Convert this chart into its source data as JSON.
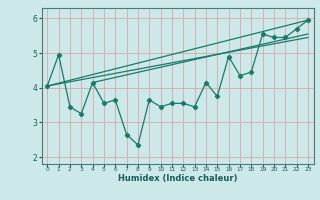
{
  "title": "",
  "xlabel": "Humidex (Indice chaleur)",
  "ylabel": "",
  "bg_color": "#cce8e8",
  "grid_color": "#b8d4d4",
  "line_color": "#1a7a6a",
  "xlim": [
    -0.5,
    23.5
  ],
  "ylim": [
    1.8,
    6.3
  ],
  "xticks": [
    0,
    1,
    2,
    3,
    4,
    5,
    6,
    7,
    8,
    9,
    10,
    11,
    12,
    13,
    14,
    15,
    16,
    17,
    18,
    19,
    20,
    21,
    22,
    23
  ],
  "yticks": [
    2,
    3,
    4,
    5,
    6
  ],
  "zigzag_x": [
    0,
    1,
    2,
    3,
    4,
    5,
    6,
    7,
    8,
    9,
    10,
    11,
    12,
    13,
    14,
    15,
    16,
    17,
    18,
    19,
    20,
    21,
    22,
    23
  ],
  "zigzag_y": [
    4.05,
    4.95,
    3.45,
    3.25,
    4.15,
    3.55,
    3.65,
    2.65,
    2.35,
    3.65,
    3.45,
    3.55,
    3.55,
    3.45,
    4.15,
    3.75,
    4.9,
    4.35,
    4.45,
    5.55,
    5.45,
    5.45,
    5.7,
    5.95
  ],
  "line1_x": [
    0,
    23
  ],
  "line1_y": [
    4.05,
    5.95
  ],
  "line2_x": [
    0,
    23
  ],
  "line2_y": [
    4.05,
    5.45
  ],
  "line3_x": [
    4,
    23
  ],
  "line3_y": [
    4.15,
    5.55
  ]
}
